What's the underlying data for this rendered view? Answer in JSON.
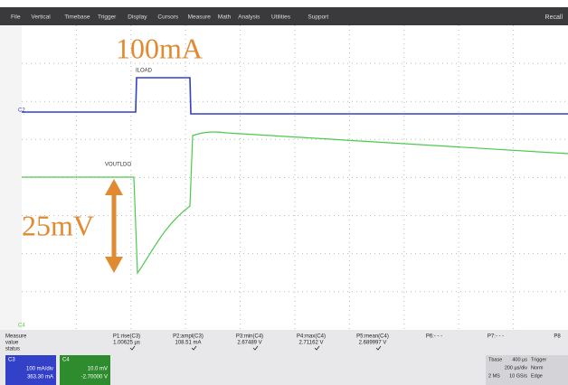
{
  "menu": {
    "items": [
      "File",
      "Vertical",
      "Timebase",
      "Trigger",
      "Display",
      "Cursors",
      "Measure",
      "Math",
      "Analysis",
      "Utilities",
      "Support"
    ],
    "recall": "Recall"
  },
  "annotations": {
    "current": "100mA",
    "voltage": "25mV"
  },
  "trace_labels": {
    "iload": "ILOAD",
    "vout": "VOUTLDO",
    "c2": "C2",
    "c4": "C4"
  },
  "measure": {
    "row_labels": [
      "Measure",
      "value",
      "status"
    ],
    "params": [
      {
        "name": "P1:rise(C3)",
        "value": "1.00625 µs"
      },
      {
        "name": "P2:ampl(C3)",
        "value": "108.51 mA"
      },
      {
        "name": "P3:min(C4)",
        "value": "2.67489 V"
      },
      {
        "name": "P4:max(C4)",
        "value": "2.71162 V"
      },
      {
        "name": "P5:mean(C4)",
        "value": "2.689997 V"
      },
      {
        "name": "P6:- - -",
        "value": ""
      },
      {
        "name": "P7:- - -",
        "value": ""
      },
      {
        "name": "P8",
        "value": ""
      }
    ]
  },
  "channels": [
    {
      "name": "C3",
      "scale": "100 mA/div",
      "offset": "363.30 mA"
    },
    {
      "name": "C4",
      "scale": "10.0 mV",
      "offset": "-2.70000 V"
    }
  ],
  "timebase": {
    "title": "Tbase",
    "delay": "400 µs",
    "scale": "200 µs/div",
    "samples": "2 MS",
    "rate": "10 GS/s"
  },
  "trigger": {
    "title": "Trigger",
    "mode": "Norm",
    "type": "Edge"
  }
}
